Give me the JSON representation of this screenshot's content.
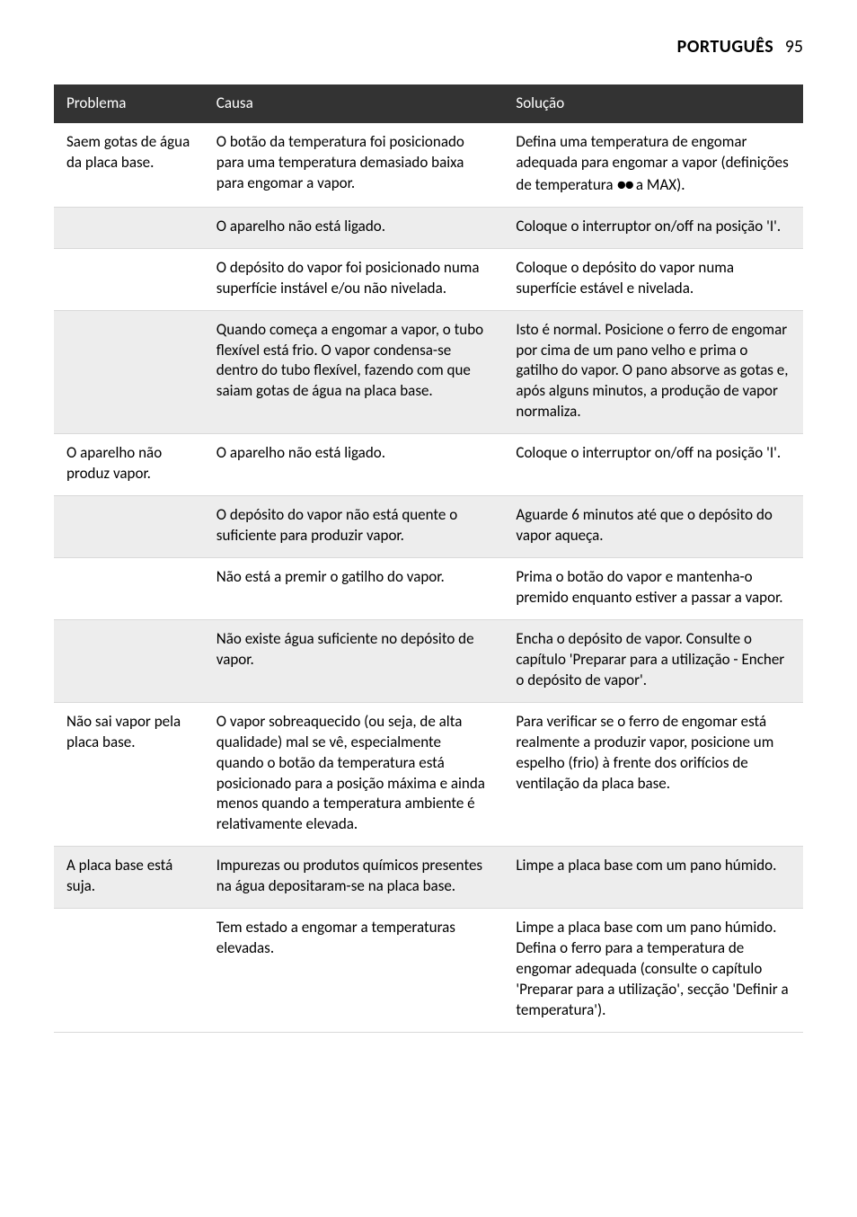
{
  "header": {
    "language": "PORTUGUÊS",
    "page_number": "95"
  },
  "table": {
    "columns": [
      "Problema",
      "Causa",
      "Solução"
    ],
    "column_widths": [
      "20%",
      "40%",
      "40%"
    ],
    "header_bg": "#333333",
    "header_fg": "#ffffff",
    "row_alt_bg": "#ededed",
    "border_color": "#d9d9d9",
    "fontsize": 17,
    "rows": [
      {
        "alt": false,
        "problem": "Saem gotas de água da placa base.",
        "cause": "O botão da temperatura foi posicionado para uma temperatura demasiado baixa para engomar a vapor.",
        "solution_pre": "Defina uma temperatura de engomar adequada para engomar a vapor (definições de temperatura ",
        "solution_dots": "●●",
        "solution_post": " a MAX)."
      },
      {
        "alt": true,
        "problem": "",
        "cause": "O aparelho não está ligado.",
        "solution": "Coloque o interruptor on/off na posição 'I'."
      },
      {
        "alt": false,
        "problem": "",
        "cause": "O depósito do vapor foi posicionado numa superfície instável e/ou não nivelada.",
        "solution": "Coloque o depósito do vapor numa superfície estável e nivelada."
      },
      {
        "alt": true,
        "problem": "",
        "cause": "Quando começa a engomar a vapor, o tubo flexível está frio. O vapor condensa-se dentro do tubo flexível, fazendo com que saiam gotas de água na placa base.",
        "solution": "Isto é normal. Posicione o ferro de engomar por cima de um pano velho e prima o gatilho do vapor. O pano absorve as gotas e, após alguns minutos, a produção de vapor normaliza."
      },
      {
        "alt": false,
        "problem": "O aparelho não produz vapor.",
        "cause": "O aparelho não está ligado.",
        "solution": "Coloque o interruptor on/off na posição 'I'."
      },
      {
        "alt": true,
        "problem": "",
        "cause": "O depósito do vapor não está quente o suficiente para produzir vapor.",
        "solution": "Aguarde 6 minutos até que o depósito do vapor aqueça."
      },
      {
        "alt": false,
        "problem": "",
        "cause": "Não está a premir o gatilho do vapor.",
        "solution": "Prima o botão do vapor e mantenha-o premido enquanto estiver a passar a vapor."
      },
      {
        "alt": true,
        "problem": "",
        "cause": "Não existe água suficiente no depósito de vapor.",
        "solution": "Encha o depósito de vapor. Consulte o capítulo 'Preparar para a utilização - Encher o depósito de vapor'."
      },
      {
        "alt": false,
        "problem": "Não sai vapor pela placa base.",
        "cause": "O vapor sobreaquecido (ou seja, de alta qualidade) mal se vê, especialmente quando o botão da temperatura está posicionado para a posição máxima e ainda menos quando a temperatura ambiente é relativamente elevada.",
        "solution": "Para verificar se o ferro de engomar está realmente a produzir vapor, posicione um espelho (frio) à frente dos orifícios de ventilação da placa base."
      },
      {
        "alt": true,
        "problem": "A placa base está suja.",
        "cause": "Impurezas ou produtos químicos presentes na água depositaram-se na placa base.",
        "solution": "Limpe a placa base com um pano húmido."
      },
      {
        "alt": false,
        "problem": "",
        "cause": "Tem estado a engomar a temperaturas elevadas.",
        "solution": "Limpe a placa base com um pano húmido. Defina o ferro para a temperatura de engomar adequada (consulte o capítulo 'Preparar para a utilização', secção 'Definir a temperatura')."
      }
    ]
  }
}
